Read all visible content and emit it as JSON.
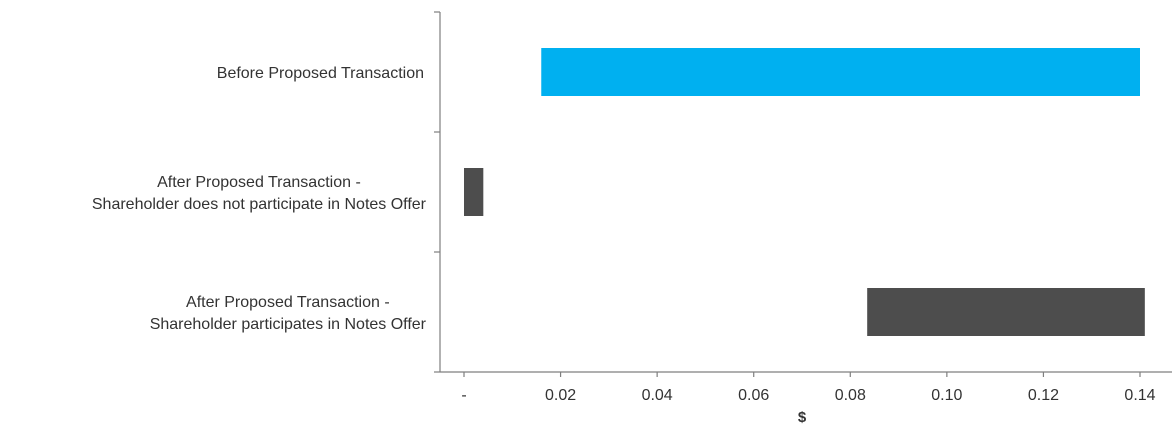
{
  "chart_data": {
    "type": "bar",
    "orientation": "horizontal",
    "floating": true,
    "categories": [
      [
        "Before Proposed Transaction"
      ],
      [
        "After Proposed Transaction -",
        "Shareholder does not participate in Notes Offer"
      ],
      [
        "After Proposed Transaction -",
        "Shareholder participates in Notes Offer"
      ]
    ],
    "ranges": [
      [
        0.016,
        0.14
      ],
      [
        0.0,
        0.004
      ],
      [
        0.0835,
        0.141
      ]
    ],
    "colors": [
      "#00b0f0",
      "#4d4d4d",
      "#4d4d4d"
    ],
    "xlabel": "$",
    "xlim": [
      -0.005,
      0.145
    ],
    "xticks": [
      0,
      0.02,
      0.04,
      0.06,
      0.08,
      0.1,
      0.12,
      0.14
    ],
    "xtick_labels": [
      "-",
      "0.02",
      "0.04",
      "0.06",
      "0.08",
      "0.10",
      "0.12",
      "0.14"
    ],
    "grid": false,
    "legend": "none"
  }
}
